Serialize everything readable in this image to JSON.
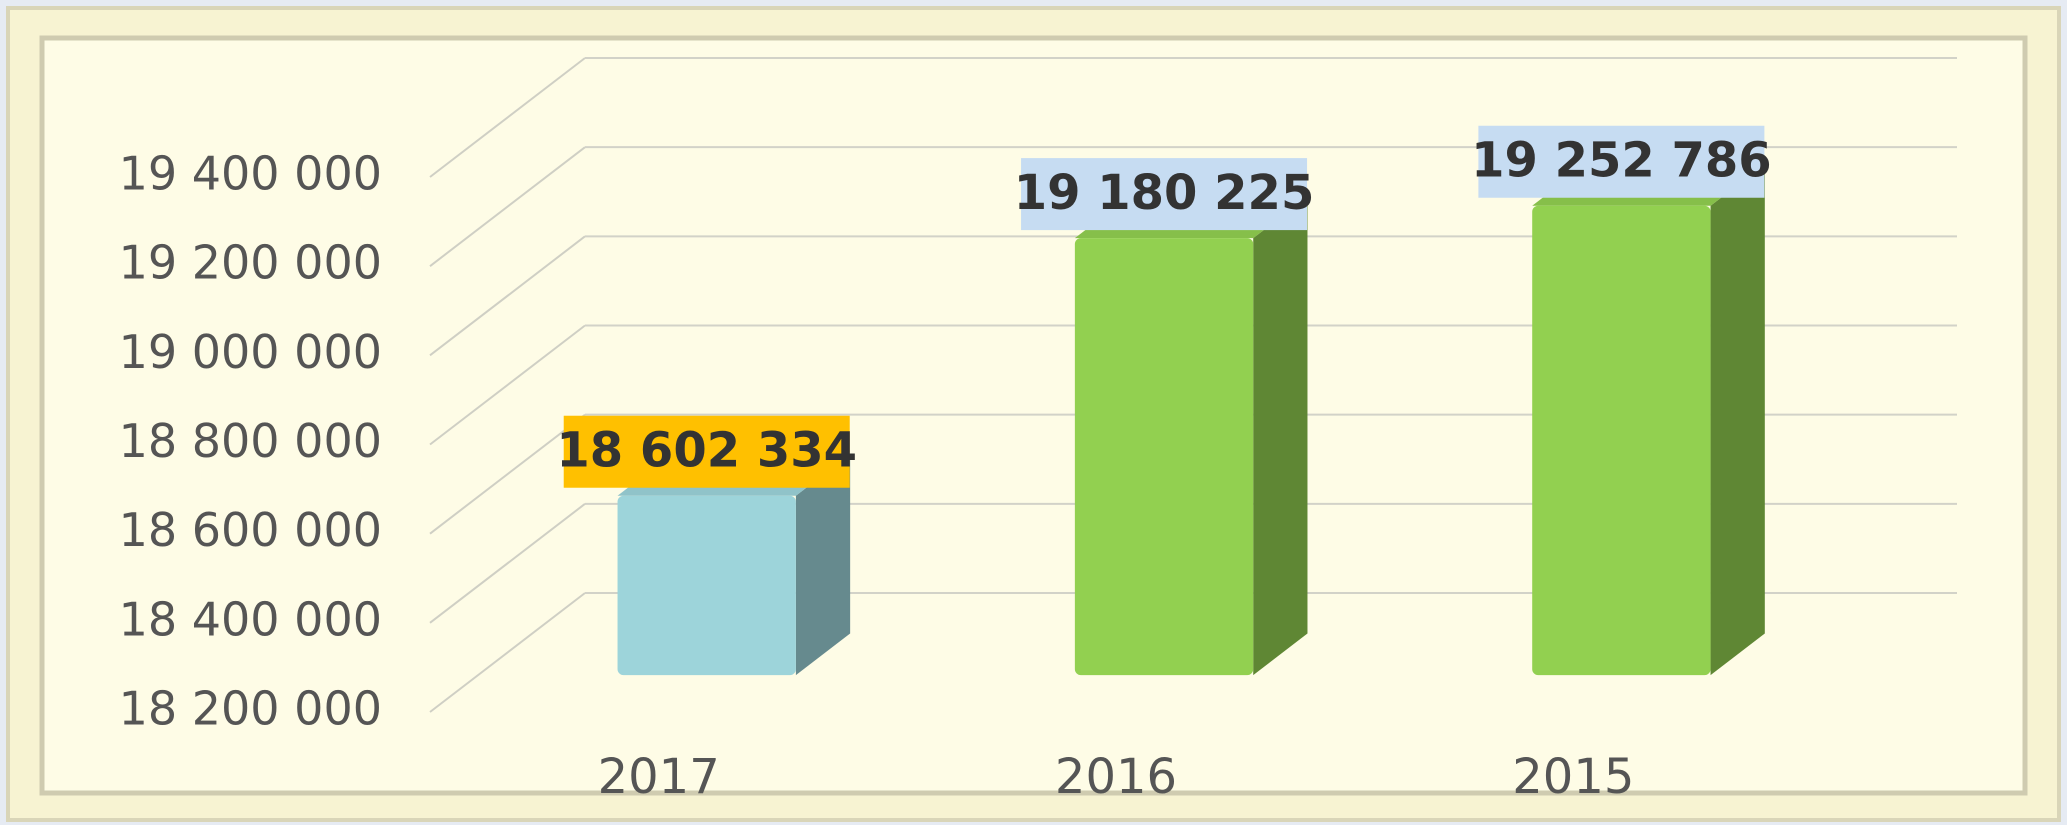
{
  "chart_data": {
    "type": "bar3d",
    "categories": [
      "2017",
      "2016",
      "2015"
    ],
    "values": [
      18602334,
      19180225,
      19252786
    ],
    "value_labels": [
      "18 602 334",
      "19 180 225",
      "19 252 786"
    ],
    "colors": [
      "#9dd4da",
      "#92d050",
      "#92d050"
    ],
    "label_colors": [
      "#ffc000",
      "#c6dcf2",
      "#c6dcf2"
    ],
    "ylim": [
      18200000,
      19400000
    ],
    "yticks": [
      {
        "value": 18200000,
        "label": "18 200 000"
      },
      {
        "value": 18400000,
        "label": "18 400 000"
      },
      {
        "value": 18600000,
        "label": "18 600 000"
      },
      {
        "value": 18800000,
        "label": "18 800 000"
      },
      {
        "value": 19000000,
        "label": "19 000 000"
      },
      {
        "value": 19200000,
        "label": "19 200 000"
      },
      {
        "value": 19400000,
        "label": "19 400 000"
      }
    ],
    "grid": true
  }
}
